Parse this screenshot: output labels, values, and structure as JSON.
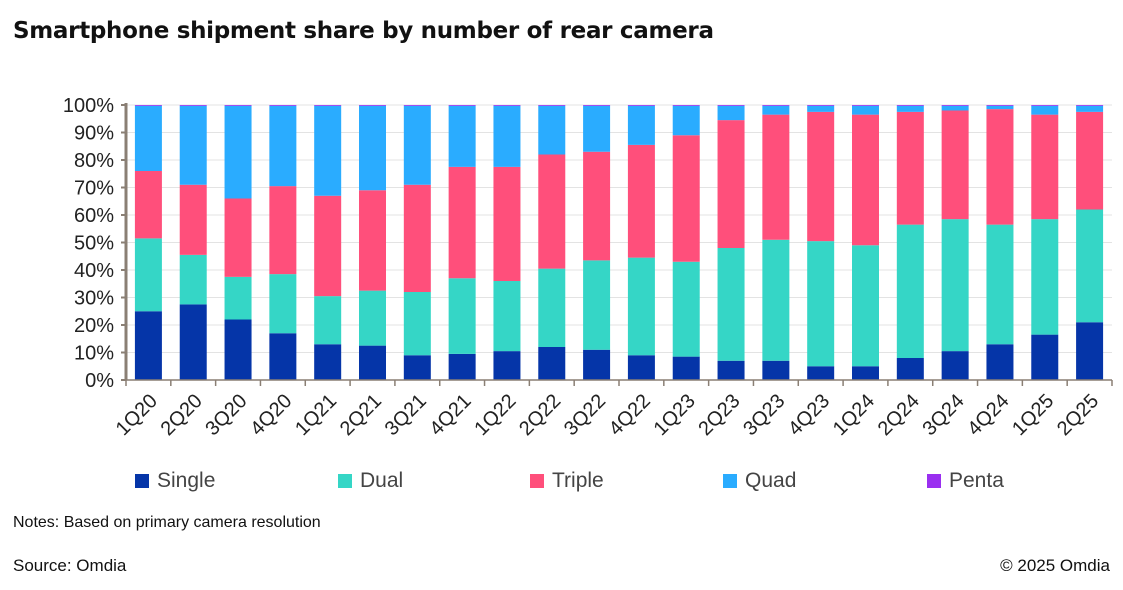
{
  "chart_data": {
    "type": "bar",
    "stacked": true,
    "title": "Smartphone shipment share by number of rear camera",
    "categories": [
      "1Q20",
      "2Q20",
      "3Q20",
      "4Q20",
      "1Q21",
      "2Q21",
      "3Q21",
      "4Q21",
      "1Q22",
      "2Q22",
      "3Q22",
      "4Q22",
      "1Q23",
      "2Q23",
      "3Q23",
      "4Q23",
      "1Q24",
      "2Q24",
      "3Q24",
      "4Q24",
      "1Q25",
      "2Q25"
    ],
    "series": [
      {
        "name": "Single",
        "color": "#0535a8",
        "values": [
          25,
          27.5,
          22,
          17,
          13,
          12.5,
          9,
          9.5,
          10.5,
          12,
          11,
          9,
          8.5,
          7,
          7,
          5,
          5,
          8,
          10.5,
          13,
          16.5,
          21
        ]
      },
      {
        "name": "Dual",
        "color": "#35d6c6",
        "values": [
          26.5,
          18,
          15.5,
          21.5,
          17.5,
          20,
          23,
          27.5,
          25.5,
          28.5,
          32.5,
          35.5,
          34.5,
          41,
          44,
          45.5,
          44,
          48.5,
          48,
          43.5,
          42,
          41
        ]
      },
      {
        "name": "Triple",
        "color": "#ff4f7b",
        "values": [
          24.5,
          25.5,
          28.5,
          32,
          36.5,
          36.5,
          39,
          40.5,
          41.5,
          41.5,
          39.5,
          41,
          46,
          46.5,
          45.5,
          47,
          47.5,
          41,
          39.5,
          42,
          38,
          35.5
        ]
      },
      {
        "name": "Quad",
        "color": "#2aacff",
        "values": [
          23.7,
          28.7,
          33.7,
          29.2,
          32.7,
          30.7,
          28.7,
          22.2,
          22.2,
          17.7,
          16.7,
          14.2,
          10.7,
          5.2,
          3.2,
          2.2,
          3.2,
          2.2,
          1.7,
          1.2,
          3.2,
          2.2
        ]
      },
      {
        "name": "Penta",
        "color": "#9a2ff0",
        "values": [
          0.3,
          0.3,
          0.3,
          0.3,
          0.3,
          0.3,
          0.3,
          0.3,
          0.3,
          0.3,
          0.3,
          0.3,
          0.3,
          0.3,
          0.3,
          0.3,
          0.3,
          0.3,
          0.3,
          0.3,
          0.3,
          0.3
        ]
      }
    ],
    "ylim": [
      0,
      100
    ],
    "yticks": [
      "0%",
      "10%",
      "20%",
      "30%",
      "40%",
      "50%",
      "60%",
      "70%",
      "80%",
      "90%",
      "100%"
    ],
    "grid": true,
    "legend": "bottom"
  },
  "notes": "Notes: Based on primary camera resolution",
  "source": "Source: Omdia",
  "copyright": "© 2025 Omdia"
}
